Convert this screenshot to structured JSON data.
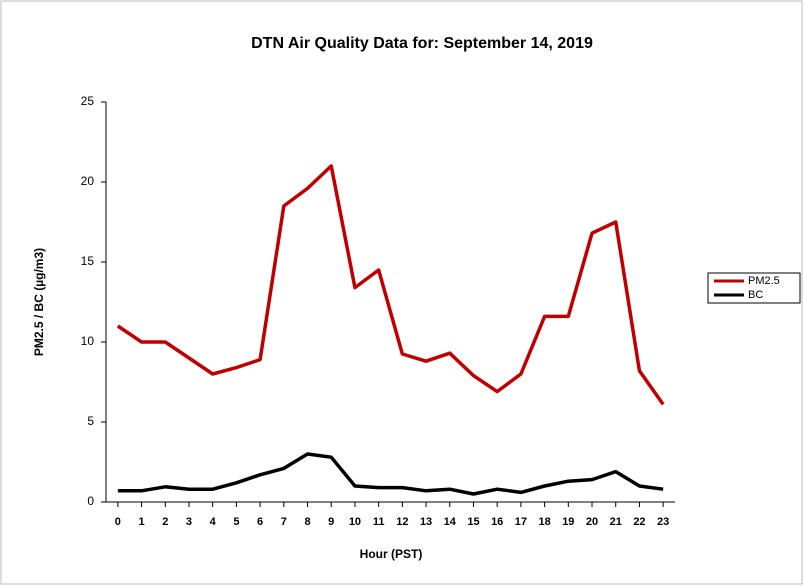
{
  "chart_data": {
    "type": "line",
    "title": "DTN Air Quality Data for: September 14, 2019",
    "x_label": "Hour (PST)",
    "y_label": "PM2.5 / BC (µg/m3)",
    "x": [
      0,
      1,
      2,
      3,
      4,
      5,
      6,
      7,
      8,
      9,
      10,
      11,
      12,
      13,
      14,
      15,
      16,
      17,
      18,
      19,
      20,
      21,
      22,
      23
    ],
    "xlim": [
      -0.5,
      23.5
    ],
    "xticks": [
      0,
      1,
      2,
      3,
      4,
      5,
      6,
      7,
      8,
      9,
      10,
      11,
      12,
      13,
      14,
      15,
      16,
      17,
      18,
      19,
      20,
      21,
      22,
      23
    ],
    "ylim": [
      0,
      25
    ],
    "yticks": [
      0,
      5,
      10,
      15,
      20,
      25
    ],
    "grid": false,
    "legend": "right",
    "series": [
      {
        "name": "PM2.5",
        "color": "#c00000",
        "values": [
          11.0,
          10.0,
          10.0,
          9.0,
          8.0,
          8.4,
          8.9,
          18.5,
          19.6,
          21.0,
          13.4,
          14.5,
          9.25,
          8.8,
          9.3,
          7.9,
          6.9,
          8.0,
          11.6,
          11.6,
          16.8,
          17.5,
          8.2,
          6.1
        ]
      },
      {
        "name": "BC",
        "color": "#000000",
        "values": [
          0.7,
          0.7,
          0.95,
          0.8,
          0.8,
          1.2,
          1.7,
          2.1,
          3.0,
          2.8,
          1.0,
          0.9,
          0.9,
          0.7,
          0.8,
          0.5,
          0.8,
          0.6,
          1.0,
          1.3,
          1.4,
          1.9,
          1.0,
          0.8
        ]
      }
    ]
  }
}
